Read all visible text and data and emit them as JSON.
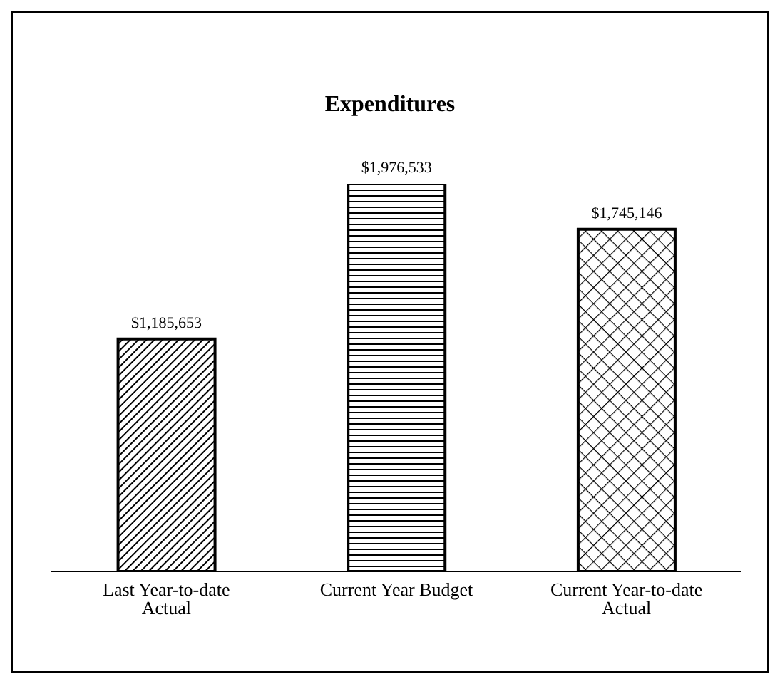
{
  "chart_data": {
    "type": "bar",
    "title": "Expenditures",
    "categories": [
      "Last Year-to-date Actual",
      "Current Year Budget",
      "Current Year-to-date Actual"
    ],
    "values": [
      1185653,
      1976533,
      1745146
    ],
    "value_labels": [
      "$1,185,653",
      "$1,976,533",
      "$1,745,146"
    ],
    "colors": [
      "#000000",
      "#000000",
      "#000000"
    ]
  }
}
